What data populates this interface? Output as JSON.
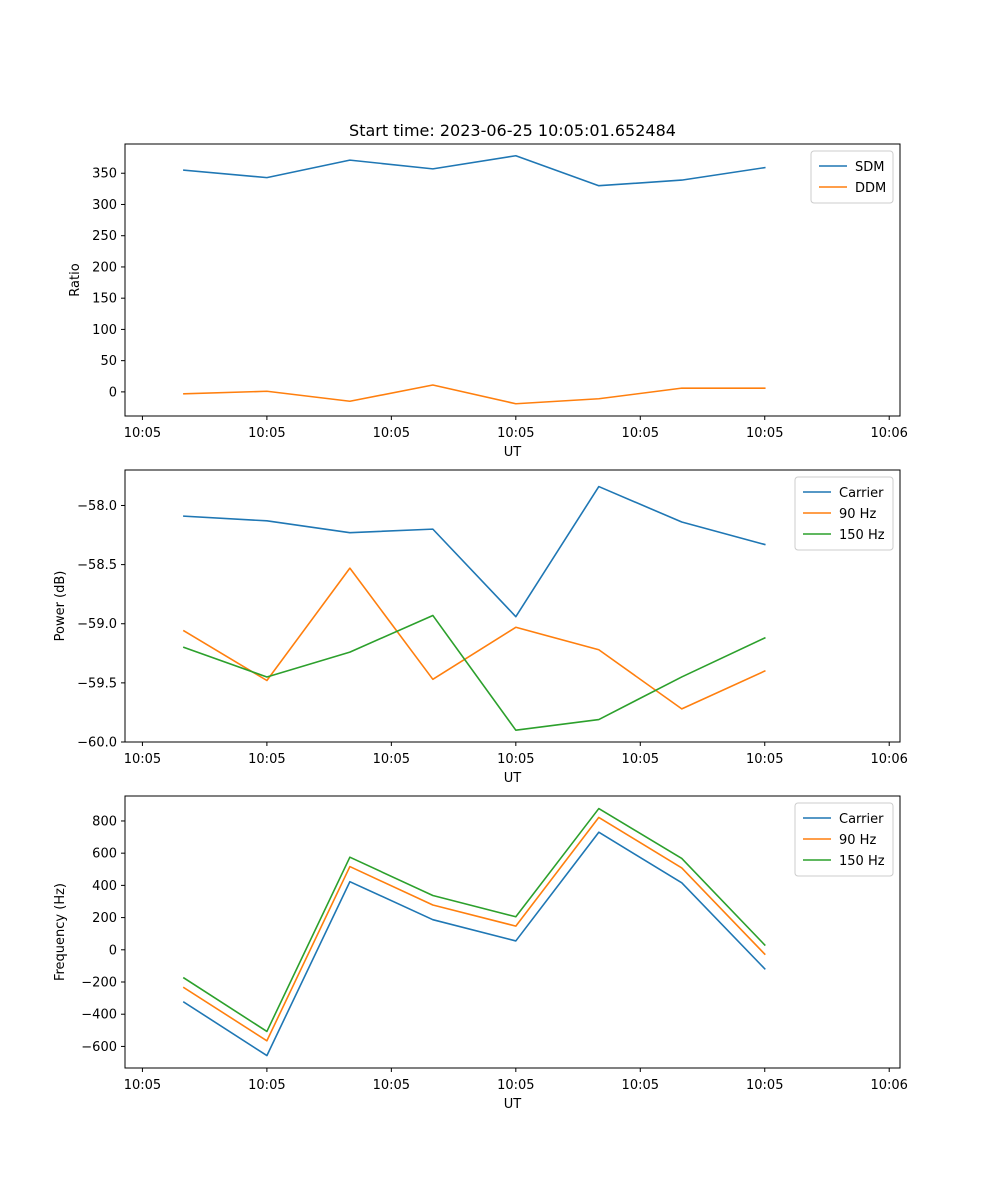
{
  "chart_data": [
    {
      "type": "line",
      "title": "Start time: 2023-06-25 10:05:01.652484",
      "xlabel": "UT",
      "ylabel": "Ratio",
      "x": [
        1,
        2,
        3,
        4,
        5,
        6,
        7,
        8
      ],
      "xlim": [
        0.29,
        9.63
      ],
      "x_ticks": [
        0.5,
        2,
        3.5,
        5,
        6.5,
        8,
        9.5
      ],
      "x_tick_labels": [
        "10:05",
        "10:05",
        "10:05",
        "10:05",
        "10:05",
        "10:05",
        "10:06"
      ],
      "ylim": [
        -38.6,
        396.8
      ],
      "y_ticks": [
        0,
        50,
        100,
        150,
        200,
        250,
        300,
        350
      ],
      "y_tick_labels": [
        "0",
        "50",
        "100",
        "150",
        "200",
        "250",
        "300",
        "350"
      ],
      "grid": false,
      "legend": "top-right",
      "series": [
        {
          "name": "SDM",
          "color": "#1f77b4",
          "values": [
            355,
            343,
            371,
            357,
            378,
            330,
            339,
            359
          ]
        },
        {
          "name": "DDM",
          "color": "#ff7f0e",
          "values": [
            -3,
            1,
            -15,
            11,
            -19,
            -11,
            6,
            6
          ]
        }
      ]
    },
    {
      "type": "line",
      "title": "",
      "xlabel": "UT",
      "ylabel": "Power (dB)",
      "x": [
        1,
        2,
        3,
        4,
        5,
        6,
        7,
        8
      ],
      "xlim": [
        0.29,
        9.63
      ],
      "x_ticks": [
        0.5,
        2,
        3.5,
        5,
        6.5,
        8,
        9.5
      ],
      "x_tick_labels": [
        "10:05",
        "10:05",
        "10:05",
        "10:05",
        "10:05",
        "10:05",
        "10:06"
      ],
      "ylim": [
        -60.0,
        -57.7
      ],
      "y_ticks": [
        -60.0,
        -59.5,
        -59.0,
        -58.5,
        -58.0
      ],
      "y_tick_labels": [
        "−60.0",
        "−59.5",
        "−59.0",
        "−58.5",
        "−58.0"
      ],
      "grid": false,
      "legend": "top-right",
      "series": [
        {
          "name": "Carrier",
          "color": "#1f77b4",
          "values": [
            -58.09,
            -58.13,
            -58.23,
            -58.2,
            -58.94,
            -57.84,
            -58.14,
            -58.33
          ]
        },
        {
          "name": "90 Hz",
          "color": "#ff7f0e",
          "values": [
            -59.06,
            -59.48,
            -58.53,
            -59.47,
            -59.03,
            -59.22,
            -59.72,
            -59.4
          ]
        },
        {
          "name": "150 Hz",
          "color": "#2ca02c",
          "values": [
            -59.2,
            -59.45,
            -59.24,
            -58.93,
            -59.9,
            -59.81,
            -59.45,
            -59.12
          ]
        }
      ]
    },
    {
      "type": "line",
      "title": "",
      "xlabel": "UT",
      "ylabel": "Frequency (Hz)",
      "x": [
        1,
        2,
        3,
        4,
        5,
        6,
        7,
        8
      ],
      "xlim": [
        0.29,
        9.63
      ],
      "x_ticks": [
        0.5,
        2,
        3.5,
        5,
        6.5,
        8,
        9.5
      ],
      "x_tick_labels": [
        "10:05",
        "10:05",
        "10:05",
        "10:05",
        "10:05",
        "10:05",
        "10:06"
      ],
      "ylim": [
        -734,
        955
      ],
      "y_ticks": [
        -600,
        -400,
        -200,
        0,
        200,
        400,
        600,
        800
      ],
      "y_tick_labels": [
        "−600",
        "−400",
        "−200",
        "0",
        "200",
        "400",
        "600",
        "800"
      ],
      "grid": false,
      "legend": "top-right",
      "series": [
        {
          "name": "Carrier",
          "color": "#1f77b4",
          "values": [
            -325,
            -657,
            423,
            187,
            55,
            730,
            416,
            -118
          ]
        },
        {
          "name": "90 Hz",
          "color": "#ff7f0e",
          "values": [
            -235,
            -565,
            517,
            278,
            147,
            822,
            508,
            -27
          ]
        },
        {
          "name": "150 Hz",
          "color": "#2ca02c",
          "values": [
            -175,
            -507,
            575,
            337,
            205,
            877,
            567,
            30
          ]
        }
      ]
    }
  ]
}
